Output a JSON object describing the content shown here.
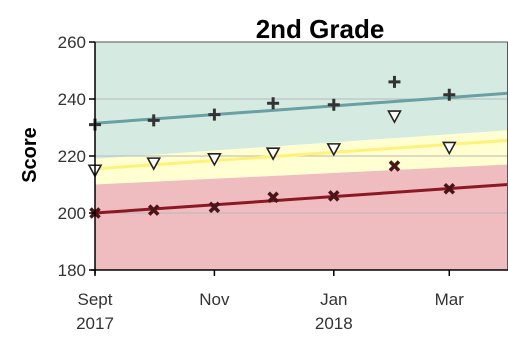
{
  "chart_data": {
    "type": "scatter",
    "title": "2nd Grade",
    "ylabel": "Score",
    "xlabel": "",
    "ylim": [
      180,
      260
    ],
    "yticks": [
      180,
      200,
      220,
      240,
      260
    ],
    "xlim": [
      "2017-09-01",
      "2018-03-31"
    ],
    "xticks": [
      {
        "date": "2017-09-01",
        "line1": "Sept",
        "line2": "2017"
      },
      {
        "date": "2017-11-01",
        "line1": "Nov",
        "line2": ""
      },
      {
        "date": "2018-01-01",
        "line1": "Jan",
        "line2": "2018"
      },
      {
        "date": "2018-03-01",
        "line1": "Mar",
        "line2": ""
      }
    ],
    "grid": "horizontal",
    "bands": [
      {
        "color": "#d5ebe2",
        "lower": [
          219,
          229
        ],
        "upper": [
          260,
          260
        ]
      },
      {
        "color": "#ffffd2",
        "lower": [
          210,
          217
        ],
        "upper": [
          219,
          229
        ]
      },
      {
        "color": "#efbcc0",
        "lower": [
          180,
          180
        ],
        "upper": [
          210,
          217
        ]
      }
    ],
    "series": [
      {
        "marker": "plus",
        "color": "#333333",
        "points": [
          {
            "x": "2017-09-01",
            "y": 231
          },
          {
            "x": "2017-10-01",
            "y": 232.5
          },
          {
            "x": "2017-11-01",
            "y": 234.5
          },
          {
            "x": "2017-12-01",
            "y": 238.5
          },
          {
            "x": "2018-01-01",
            "y": 238
          },
          {
            "x": "2018-02-01",
            "y": 246
          },
          {
            "x": "2018-03-01",
            "y": 241.5
          }
        ],
        "trend": {
          "color": "#6a9fa3",
          "from": 231.5,
          "to": 242
        }
      },
      {
        "marker": "triangle-down",
        "color": "#222222",
        "points": [
          {
            "x": "2017-09-01",
            "y": 215
          },
          {
            "x": "2017-10-01",
            "y": 217.5
          },
          {
            "x": "2017-11-01",
            "y": 219
          },
          {
            "x": "2017-12-01",
            "y": 221
          },
          {
            "x": "2018-01-01",
            "y": 222.5
          },
          {
            "x": "2018-02-01",
            "y": 234
          },
          {
            "x": "2018-03-01",
            "y": 223
          }
        ],
        "trend": {
          "color": "#fff27a",
          "from": 215.5,
          "to": 225.5
        }
      },
      {
        "marker": "x",
        "color": "#4a1418",
        "points": [
          {
            "x": "2017-09-01",
            "y": 200
          },
          {
            "x": "2017-10-01",
            "y": 201
          },
          {
            "x": "2017-11-01",
            "y": 202
          },
          {
            "x": "2017-12-01",
            "y": 205.5
          },
          {
            "x": "2018-01-01",
            "y": 206
          },
          {
            "x": "2018-02-01",
            "y": 216.5
          },
          {
            "x": "2018-03-01",
            "y": 208.5
          }
        ],
        "trend": {
          "color": "#8c1824",
          "from": 200,
          "to": 210
        }
      }
    ]
  }
}
